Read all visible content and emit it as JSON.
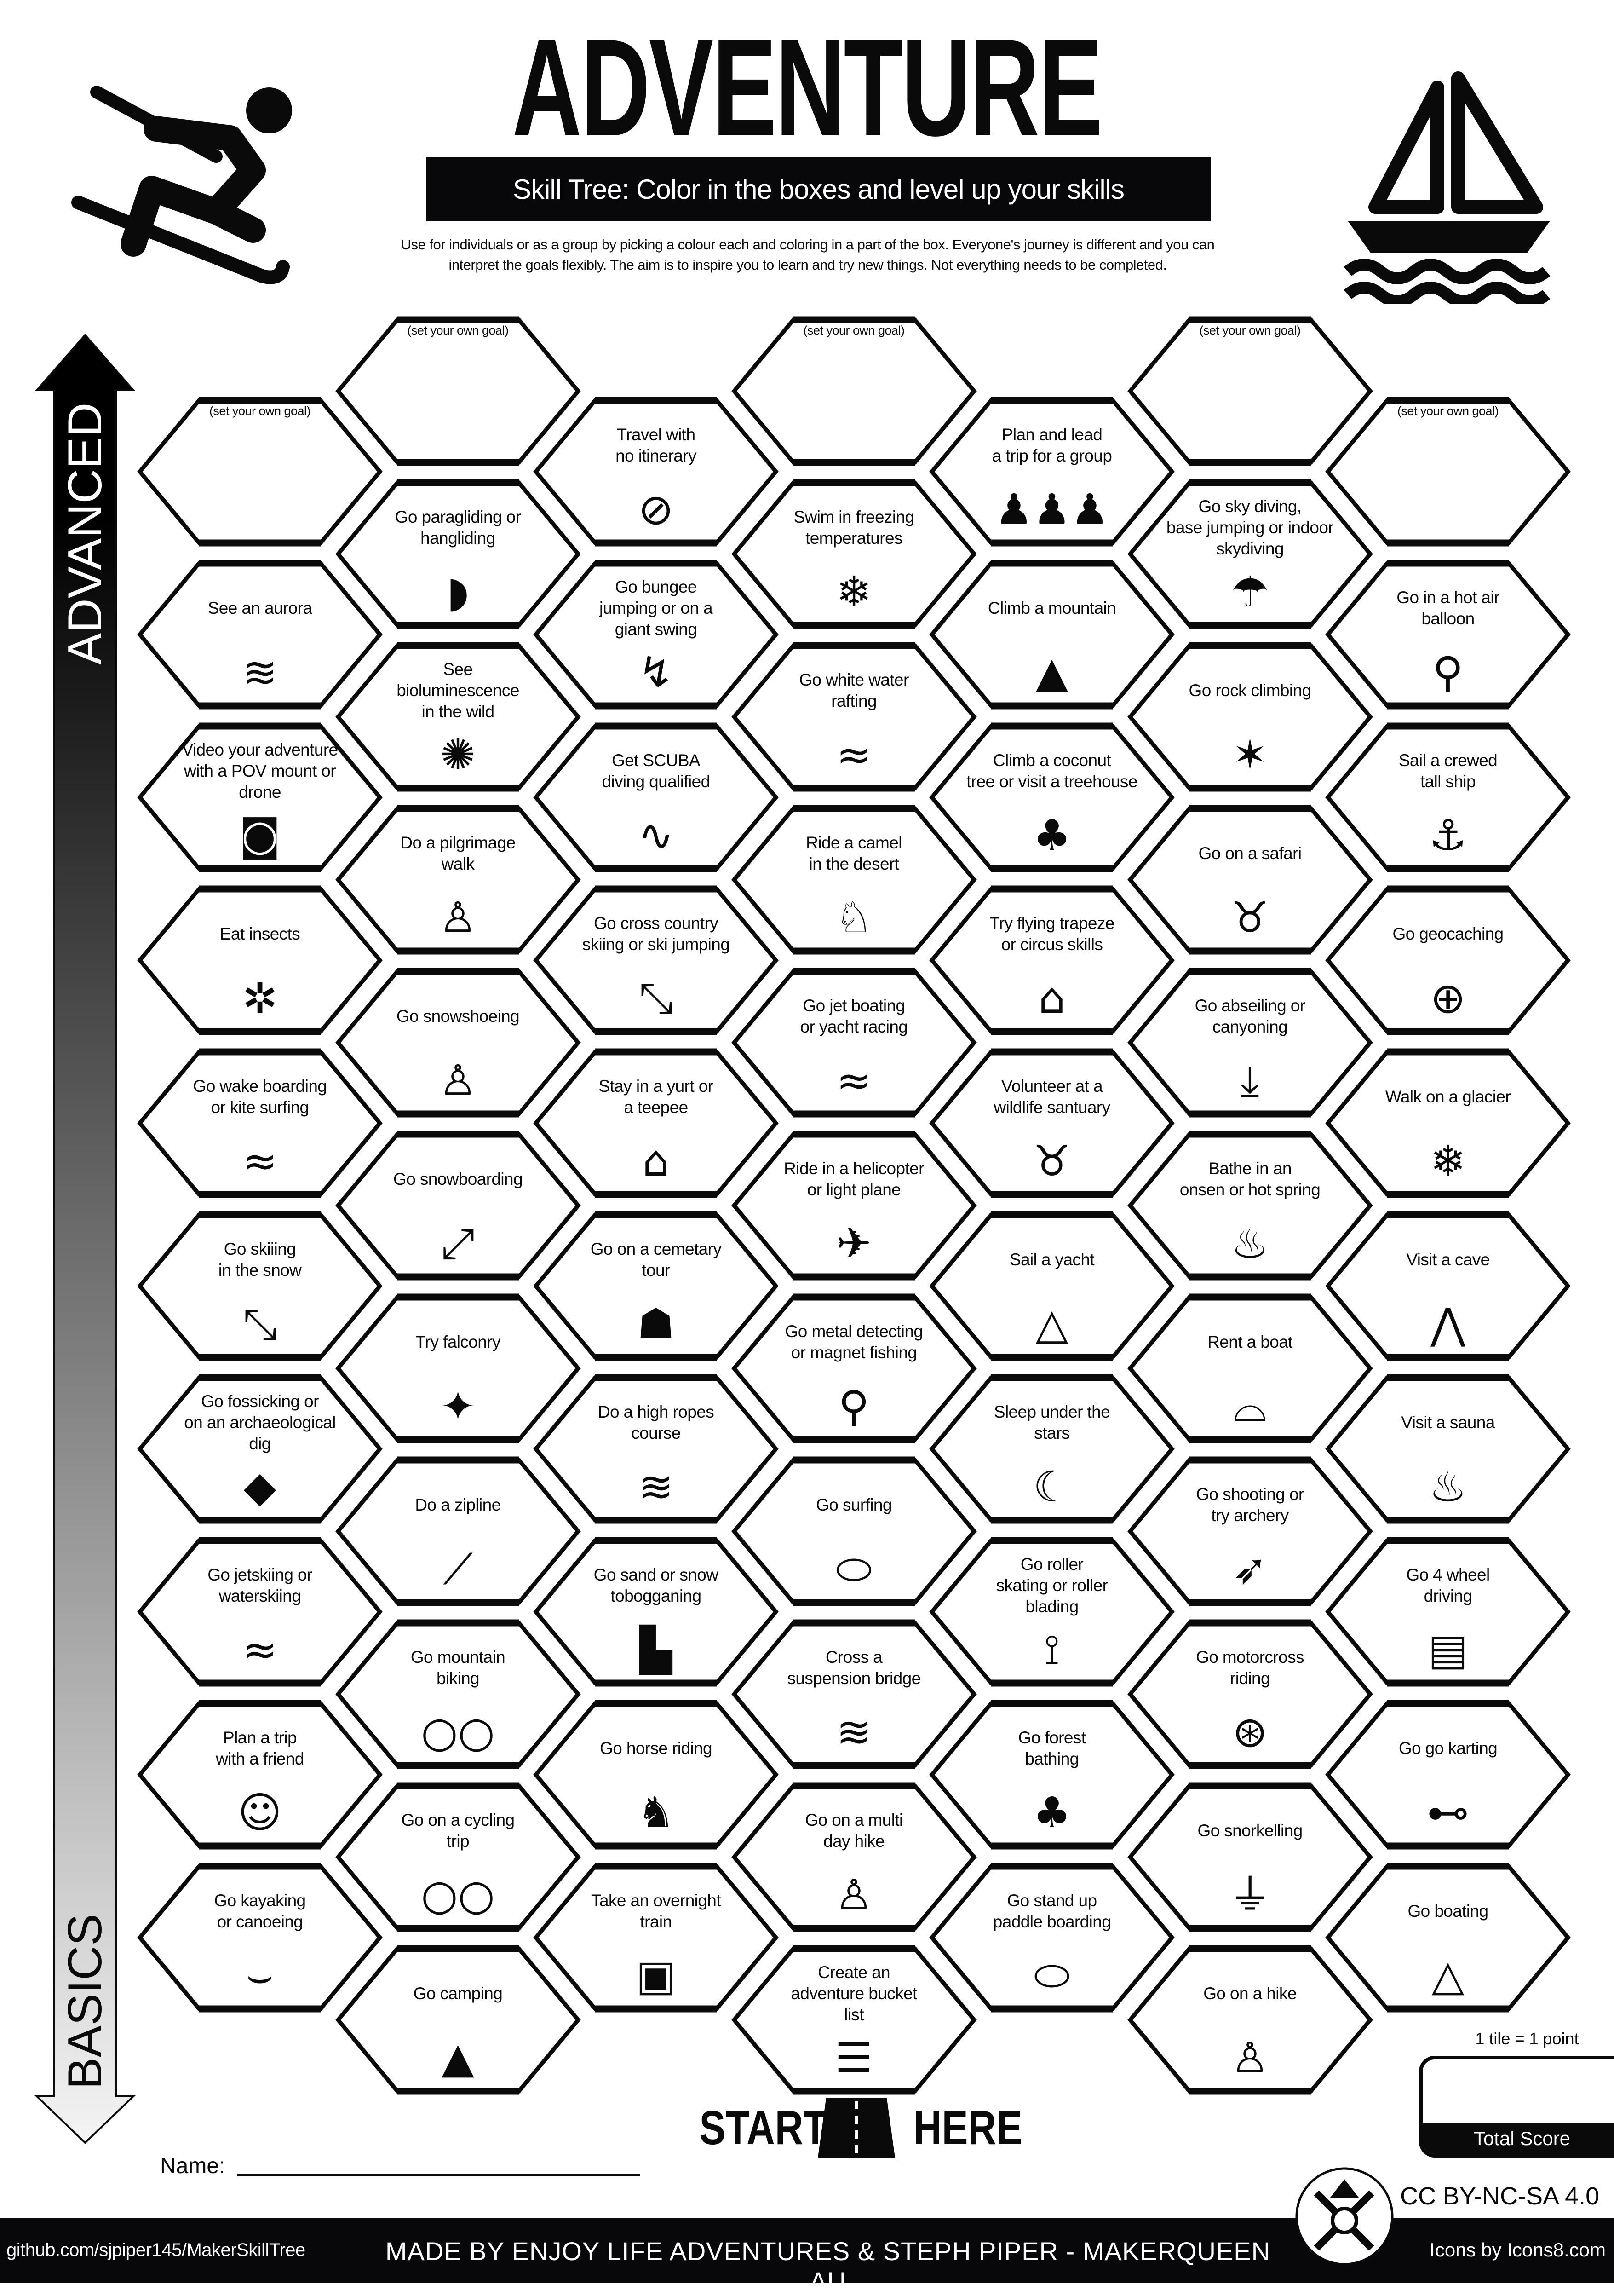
{
  "header": {
    "title": "ADVENTURE",
    "subtitle": "Skill Tree:  Color in the boxes and level up your skills",
    "intro_line1": "Use for individuals or as a group by picking a colour each and coloring in a part of the box.  Everyone's journey is different and you can",
    "intro_line2": "interpret the goals flexibly.  The aim is to inspire you to learn and try new things. Not everything needs to be completed.",
    "left_icon": "skier-icon",
    "right_icon": "sailboat-icon"
  },
  "progress_arrow": {
    "top_label": "ADVANCED",
    "bottom_label": "BASICS",
    "gradient_top": "#000000",
    "gradient_bottom": "#f4f4f4"
  },
  "columns": [
    {
      "tiles": [
        {
          "goal": "(set your own goal)"
        },
        {
          "label": "See an aurora",
          "icon": "aurora-icon",
          "glyph": "≋"
        },
        {
          "label": "Video your adventure\nwith a POV mount or\ndrone",
          "icon": "camera-icon",
          "glyph": "◙"
        },
        {
          "label": "Eat insects",
          "icon": "grasshopper-icon",
          "glyph": "✲"
        },
        {
          "label": "Go wake boarding\nor kite surfing",
          "icon": "kitesurfing-icon",
          "glyph": "≈"
        },
        {
          "label": "Go skiiing\nin the snow",
          "icon": "skiing-icon",
          "glyph": "⤡"
        },
        {
          "label": "Go fossicking or\non an archaeological dig",
          "icon": "gem-icon",
          "glyph": "◆"
        },
        {
          "label": "Go jetskiing or\nwaterskiing",
          "icon": "jetski-icon",
          "glyph": "≈"
        },
        {
          "label": "Plan a trip\nwith a friend",
          "icon": "friends-laptop-icon",
          "glyph": "☺"
        },
        {
          "label": "Go kayaking\nor canoeing",
          "icon": "kayak-icon",
          "glyph": "⌣"
        }
      ]
    },
    {
      "tiles": [
        {
          "goal": "(set your own goal)"
        },
        {
          "label": "Go paragliding or\nhangliding",
          "icon": "paraglider-icon",
          "glyph": "◗"
        },
        {
          "label": "See\nbioluminescence\nin the wild",
          "icon": "firefly-icon",
          "glyph": "✺"
        },
        {
          "label": "Do a pilgrimage\nwalk",
          "icon": "hiker-icon",
          "glyph": "♙"
        },
        {
          "label": "Go snowshoeing",
          "icon": "hiker-icon",
          "glyph": "♙"
        },
        {
          "label": "Go snowboarding",
          "icon": "snowboarder-icon",
          "glyph": "⤢"
        },
        {
          "label": "Try falconry",
          "icon": "eagle-icon",
          "glyph": "✦"
        },
        {
          "label": "Do a zipline",
          "icon": "zipline-icon",
          "glyph": "⟋"
        },
        {
          "label": "Go mountain\nbiking",
          "icon": "bicycle-icon",
          "glyph": "○○"
        },
        {
          "label": "Go on a cycling\ntrip",
          "icon": "bicycle-icon",
          "glyph": "○○"
        },
        {
          "label": "Go camping",
          "icon": "tent-icon",
          "glyph": "▲"
        }
      ]
    },
    {
      "tiles": [
        {
          "label": "Travel with\nno itinerary",
          "icon": "no-map-icon",
          "glyph": "⊘"
        },
        {
          "label": "Go bungee\njumping or on a\ngiant swing",
          "icon": "bungee-icon",
          "glyph": "↯"
        },
        {
          "label": "Get SCUBA\ndiving qualified",
          "icon": "scuba-diver-icon",
          "glyph": "∿"
        },
        {
          "label": "Go cross country\nskiing or ski jumping",
          "icon": "skiing-icon",
          "glyph": "⤡"
        },
        {
          "label": "Stay in a yurt or\na teepee",
          "icon": "yurt-icon",
          "glyph": "⌂"
        },
        {
          "label": "Go on a cemetary\ntour",
          "icon": "gravestone-icon",
          "glyph": "☗"
        },
        {
          "label": "Do a high ropes\ncourse",
          "icon": "rope-bridge-icon",
          "glyph": "≋"
        },
        {
          "label": "Go sand  or snow\ntobogganing",
          "icon": "sled-icon",
          "glyph": "▙"
        },
        {
          "label": "Go horse riding",
          "icon": "horse-rider-icon",
          "glyph": "♞"
        },
        {
          "label": "Take an overnight\ntrain",
          "icon": "train-icon",
          "glyph": "▣"
        }
      ]
    },
    {
      "tiles": [
        {
          "goal": "(set your own goal)"
        },
        {
          "label": "Swim in freezing\ntemperatures",
          "icon": "snowflakes-icon",
          "glyph": "❄"
        },
        {
          "label": "Go white water\nrafting",
          "icon": "rafting-icon",
          "glyph": "≈"
        },
        {
          "label": "Ride a camel\nin the desert",
          "icon": "camel-icon",
          "glyph": "♘"
        },
        {
          "label": "Go jet boating\nor yacht racing",
          "icon": "jet-boat-icon",
          "glyph": "≈"
        },
        {
          "label": "Ride in a helicopter\nor light plane",
          "icon": "helicopter-icon",
          "glyph": "✈"
        },
        {
          "label": "Go metal detecting\nor magnet fishing",
          "icon": "metal-detector-icon",
          "glyph": "⚲"
        },
        {
          "label": "Go surfing",
          "icon": "surfboard-icon",
          "glyph": "⬭"
        },
        {
          "label": "Cross a\nsuspension bridge",
          "icon": "bridge-icon",
          "glyph": "≋"
        },
        {
          "label": "Go on a multi\nday hike",
          "icon": "hiker-icon",
          "glyph": "♙"
        },
        {
          "label": "Create an\nadventure bucket\nlist",
          "icon": "list-icon",
          "glyph": "☰"
        }
      ]
    },
    {
      "tiles": [
        {
          "label": "Plan and lead\na trip for a group",
          "icon": "group-icon",
          "glyph": "♟♟♟"
        },
        {
          "label": "Climb a mountain",
          "icon": "mountain-icon",
          "glyph": "▲"
        },
        {
          "label": "Climb a coconut\ntree or visit a treehouse",
          "icon": "treehouse-icon",
          "glyph": "♣"
        },
        {
          "label": "Try flying trapeze\nor circus skills",
          "icon": "circus-tent-icon",
          "glyph": "⌂"
        },
        {
          "label": "Volunteer at a\nwildlife santuary",
          "icon": "elephant-icon",
          "glyph": "♉"
        },
        {
          "label": "Sail a yacht",
          "icon": "sailboat-icon",
          "glyph": "△"
        },
        {
          "label": "Sleep under the\nstars",
          "icon": "night-sky-icon",
          "glyph": "☾"
        },
        {
          "label": "Go roller\nskating or roller\nblading",
          "icon": "roller-skater-icon",
          "glyph": "⟟"
        },
        {
          "label": "Go forest\nbathing",
          "icon": "forest-icon",
          "glyph": "♣"
        },
        {
          "label": "Go stand up\npaddle boarding",
          "icon": "paddle-board-icon",
          "glyph": "⬭"
        }
      ]
    },
    {
      "tiles": [
        {
          "goal": "(set your own goal)"
        },
        {
          "label": "Go sky diving,\nbase jumping or indoor\nskydiving",
          "icon": "parachute-icon",
          "glyph": "☂"
        },
        {
          "label": "Go rock climbing",
          "icon": "climber-icon",
          "glyph": "✶"
        },
        {
          "label": "Go on a safari",
          "icon": "elephant-icon",
          "glyph": "♉"
        },
        {
          "label": "Go abseiling or\ncanyoning",
          "icon": "abseiling-icon",
          "glyph": "⤓"
        },
        {
          "label": "Bathe in an\nonsen or hot spring",
          "icon": "hot-spring-icon",
          "glyph": "♨"
        },
        {
          "label": "Rent a boat",
          "icon": "boat-icon",
          "glyph": "⌓"
        },
        {
          "label": "Go shooting or\ntry archery",
          "icon": "bow-arrow-icon",
          "glyph": "➶"
        },
        {
          "label": "Go motorcross\nriding",
          "icon": "motorbike-icon",
          "glyph": "⊛"
        },
        {
          "label": "Go snorkelling",
          "icon": "snorkel-icon",
          "glyph": "⏚"
        },
        {
          "label": "Go on a hike",
          "icon": "hiker-icon",
          "glyph": "♙"
        }
      ]
    },
    {
      "tiles": [
        {
          "goal": "(set your own goal)"
        },
        {
          "label": "Go in a hot air\nballoon",
          "icon": "hot-air-balloon-icon",
          "glyph": "⚲"
        },
        {
          "label": "Sail a crewed\ntall ship",
          "icon": "tall-ship-icon",
          "glyph": "⚓"
        },
        {
          "label": "Go geocaching",
          "icon": "globe-pin-icon",
          "glyph": "⊕"
        },
        {
          "label": "Walk on a glacier",
          "icon": "snowflakes-icon",
          "glyph": "❄"
        },
        {
          "label": "Visit a cave",
          "icon": "cave-icon",
          "glyph": "⋀"
        },
        {
          "label": "Visit a sauna",
          "icon": "sauna-icon",
          "glyph": "♨"
        },
        {
          "label": "Go 4 wheel\ndriving",
          "icon": "jeep-icon",
          "glyph": "▤"
        },
        {
          "label": "Go go karting",
          "icon": "go-kart-icon",
          "glyph": "⊷"
        },
        {
          "label": "Go boating",
          "icon": "sailboat-icon",
          "glyph": "△"
        }
      ]
    }
  ],
  "start": {
    "left": "START",
    "right": "HERE",
    "icon": "road-icon"
  },
  "name_label": "Name:",
  "score": {
    "note": "1 tile = 1 point",
    "label": "Total Score"
  },
  "license": "CC BY-NC-SA 4.0",
  "footer": {
    "github": "github.com/sjpiper145/MakerSkillTree",
    "made_by": "MADE BY ENJOY LIFE ADVENTURES & STEPH PIPER  -  MAKERQUEEN AU",
    "icons_credit": "Icons by Icons8.com",
    "logo_icon": "makerqueen-tools-logo-icon"
  }
}
